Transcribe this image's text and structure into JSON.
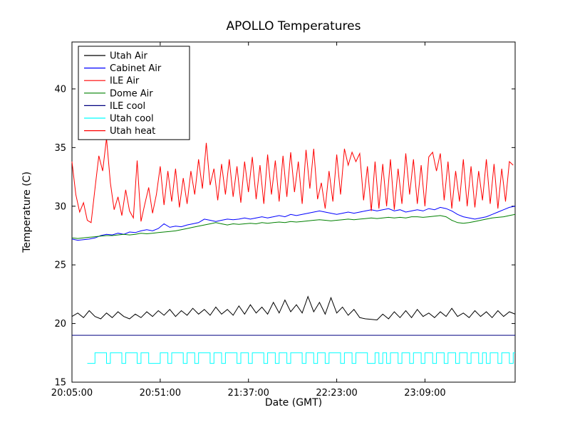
{
  "figure": {
    "title": "APOLLO Temperatures",
    "xlabel": "Date (GMT)",
    "ylabel": "Temperature (C)",
    "background": "#ffffff"
  },
  "chart_data": {
    "type": "line",
    "title": "APOLLO Temperatures",
    "xlabel": "Date (GMT)",
    "ylabel": "Temperature (C)",
    "grid": false,
    "legend_position": "upper left",
    "x_unit": "minutes since 20:05:00 GMT",
    "xlim": [
      0,
      231
    ],
    "ylim": [
      15,
      44
    ],
    "yticks": [
      15,
      20,
      25,
      30,
      35,
      40
    ],
    "xticks": [
      {
        "t": 0,
        "label": "20:05:00"
      },
      {
        "t": 46,
        "label": "20:51:00"
      },
      {
        "t": 92,
        "label": "21:37:00"
      },
      {
        "t": 138,
        "label": "22:23:00"
      },
      {
        "t": 184,
        "label": "23:09:00"
      }
    ],
    "series": [
      {
        "name": "Utah Air",
        "color": "#000000",
        "style": "line",
        "t0": 0,
        "dt": 3,
        "values": [
          20.6,
          20.9,
          20.5,
          21.1,
          20.6,
          20.4,
          20.9,
          20.5,
          21.0,
          20.6,
          20.4,
          20.8,
          20.5,
          21.0,
          20.6,
          21.1,
          20.7,
          21.2,
          20.6,
          21.1,
          20.7,
          21.3,
          20.8,
          21.2,
          20.7,
          21.4,
          20.8,
          21.2,
          20.7,
          21.5,
          20.8,
          21.6,
          20.9,
          21.4,
          20.8,
          21.8,
          20.9,
          22.0,
          21.0,
          21.6,
          20.9,
          22.3,
          21.0,
          21.8,
          20.8,
          22.2,
          20.9,
          21.4,
          20.7,
          21.2,
          20.5,
          20.4,
          20.35,
          20.3,
          20.8,
          20.4,
          21.0,
          20.5,
          21.1,
          20.5,
          21.2,
          20.6,
          20.9,
          20.5,
          21.0,
          20.6,
          21.3,
          20.6,
          20.9,
          20.5,
          21.1,
          20.6,
          21.0,
          20.5,
          21.1,
          20.6,
          21.0,
          20.8
        ]
      },
      {
        "name": "Cabinet Air",
        "color": "#0000ff",
        "style": "line",
        "t0": 0,
        "dt": 3,
        "values": [
          27.2,
          27.1,
          27.15,
          27.2,
          27.3,
          27.5,
          27.6,
          27.55,
          27.7,
          27.6,
          27.8,
          27.75,
          27.9,
          28.0,
          27.9,
          28.1,
          28.5,
          28.2,
          28.3,
          28.25,
          28.4,
          28.5,
          28.6,
          28.9,
          28.8,
          28.7,
          28.8,
          28.9,
          28.85,
          28.9,
          29.0,
          28.9,
          29.0,
          29.1,
          29.0,
          29.1,
          29.2,
          29.1,
          29.3,
          29.2,
          29.3,
          29.4,
          29.5,
          29.6,
          29.5,
          29.4,
          29.3,
          29.4,
          29.5,
          29.4,
          29.5,
          29.6,
          29.7,
          29.6,
          29.7,
          29.8,
          29.6,
          29.7,
          29.5,
          29.6,
          29.7,
          29.6,
          29.8,
          29.7,
          29.9,
          29.8,
          29.6,
          29.3,
          29.1,
          29.0,
          28.9,
          29.0,
          29.1,
          29.3,
          29.5,
          29.7,
          29.9,
          30.0
        ]
      },
      {
        "name": "ILE Air",
        "color": "#ff0000",
        "style": "line",
        "t0": 0,
        "dt": 2,
        "values": [
          33.8,
          31.0,
          29.5,
          30.3,
          28.8,
          28.6,
          31.5,
          34.3,
          33.0,
          35.8,
          32.0,
          29.7,
          30.8,
          29.2,
          31.4,
          29.6,
          29.0,
          33.9,
          28.7,
          30.2,
          31.6,
          29.4,
          31.0,
          33.4,
          30.1,
          33.0,
          30.4,
          33.2,
          29.9,
          32.4,
          30.2,
          33.0,
          31.0,
          34.0,
          31.5,
          35.4,
          31.8,
          33.2,
          30.5,
          33.6,
          31.0,
          34.0,
          30.8,
          33.4,
          30.3,
          33.8,
          31.2,
          34.2,
          30.6,
          33.5,
          30.2,
          34.4,
          31.0,
          33.9,
          30.4,
          34.3,
          30.8,
          34.6,
          31.2,
          33.8,
          30.2,
          34.8,
          31.5,
          34.9,
          30.6,
          32.0,
          29.8,
          33.0,
          30.4,
          34.4,
          31.0,
          34.9,
          33.5,
          34.6,
          33.8,
          34.5,
          30.5,
          33.4,
          29.6,
          33.8,
          29.8,
          33.6,
          30.0,
          34.0,
          29.7,
          33.2,
          30.2,
          34.5,
          31.0,
          34.0,
          30.2,
          33.5,
          30.0,
          34.2,
          34.6,
          33.0,
          34.5,
          30.5,
          33.8,
          29.8,
          33.0,
          30.4,
          34.0,
          30.0,
          33.4,
          29.9,
          33.0,
          30.5,
          34.0,
          30.2,
          33.6,
          29.8,
          33.2,
          30.4,
          33.8,
          33.5
        ]
      },
      {
        "name": "Dome Air",
        "color": "#008000",
        "style": "line",
        "t0": 0,
        "dt": 3,
        "values": [
          27.3,
          27.25,
          27.3,
          27.35,
          27.4,
          27.45,
          27.5,
          27.5,
          27.55,
          27.6,
          27.55,
          27.6,
          27.7,
          27.65,
          27.7,
          27.75,
          27.8,
          27.85,
          27.9,
          28.0,
          28.1,
          28.2,
          28.3,
          28.4,
          28.5,
          28.6,
          28.5,
          28.4,
          28.5,
          28.45,
          28.5,
          28.55,
          28.5,
          28.6,
          28.55,
          28.6,
          28.65,
          28.6,
          28.7,
          28.65,
          28.7,
          28.75,
          28.8,
          28.85,
          28.8,
          28.75,
          28.8,
          28.85,
          28.9,
          28.85,
          28.9,
          28.95,
          29.0,
          28.95,
          29.0,
          29.05,
          29.0,
          29.05,
          29.0,
          29.1,
          29.1,
          29.05,
          29.1,
          29.15,
          29.2,
          29.1,
          28.8,
          28.6,
          28.55,
          28.6,
          28.7,
          28.8,
          28.9,
          29.0,
          29.05,
          29.1,
          29.2,
          29.3
        ]
      },
      {
        "name": "ILE cool",
        "color": "#000080",
        "style": "line",
        "points": [
          [
            0,
            19.0
          ],
          [
            231,
            19.0
          ]
        ]
      },
      {
        "name": "Utah cool",
        "color": "#00ffff",
        "style": "step",
        "points": [
          [
            8,
            16.6
          ],
          [
            12,
            17.5
          ],
          [
            18,
            16.6
          ],
          [
            20,
            17.5
          ],
          [
            26,
            16.6
          ],
          [
            28,
            17.5
          ],
          [
            34,
            16.6
          ],
          [
            36,
            17.5
          ],
          [
            40,
            16.6
          ],
          [
            46,
            17.5
          ],
          [
            50,
            16.6
          ],
          [
            52,
            17.5
          ],
          [
            58,
            16.6
          ],
          [
            60,
            17.5
          ],
          [
            64,
            16.6
          ],
          [
            66,
            17.5
          ],
          [
            72,
            16.6
          ],
          [
            74,
            17.5
          ],
          [
            78,
            16.6
          ],
          [
            80,
            17.5
          ],
          [
            86,
            16.6
          ],
          [
            88,
            17.5
          ],
          [
            92,
            16.6
          ],
          [
            94,
            17.5
          ],
          [
            100,
            16.6
          ],
          [
            102,
            17.5
          ],
          [
            106,
            16.6
          ],
          [
            108,
            17.5
          ],
          [
            112,
            16.6
          ],
          [
            114,
            17.5
          ],
          [
            120,
            16.6
          ],
          [
            122,
            17.5
          ],
          [
            126,
            16.6
          ],
          [
            128,
            17.5
          ],
          [
            132,
            16.6
          ],
          [
            134,
            17.5
          ],
          [
            140,
            16.6
          ],
          [
            142,
            17.5
          ],
          [
            146,
            16.6
          ],
          [
            148,
            17.5
          ],
          [
            154,
            16.6
          ],
          [
            158,
            17.5
          ],
          [
            160,
            16.6
          ],
          [
            162,
            17.5
          ],
          [
            164,
            16.6
          ],
          [
            166,
            17.5
          ],
          [
            170,
            16.6
          ],
          [
            172,
            17.5
          ],
          [
            176,
            16.6
          ],
          [
            178,
            17.5
          ],
          [
            182,
            16.6
          ],
          [
            184,
            17.5
          ],
          [
            188,
            16.6
          ],
          [
            190,
            17.5
          ],
          [
            194,
            16.6
          ],
          [
            196,
            17.5
          ],
          [
            200,
            16.6
          ],
          [
            202,
            17.5
          ],
          [
            206,
            16.6
          ],
          [
            208,
            17.5
          ],
          [
            212,
            16.6
          ],
          [
            214,
            17.5
          ],
          [
            216,
            16.6
          ],
          [
            218,
            17.5
          ],
          [
            222,
            16.6
          ],
          [
            224,
            17.5
          ],
          [
            228,
            16.6
          ],
          [
            230,
            17.5
          ]
        ]
      },
      {
        "name": "Utah heat",
        "color": "#ff0000",
        "style": "line",
        "points": []
      }
    ]
  }
}
